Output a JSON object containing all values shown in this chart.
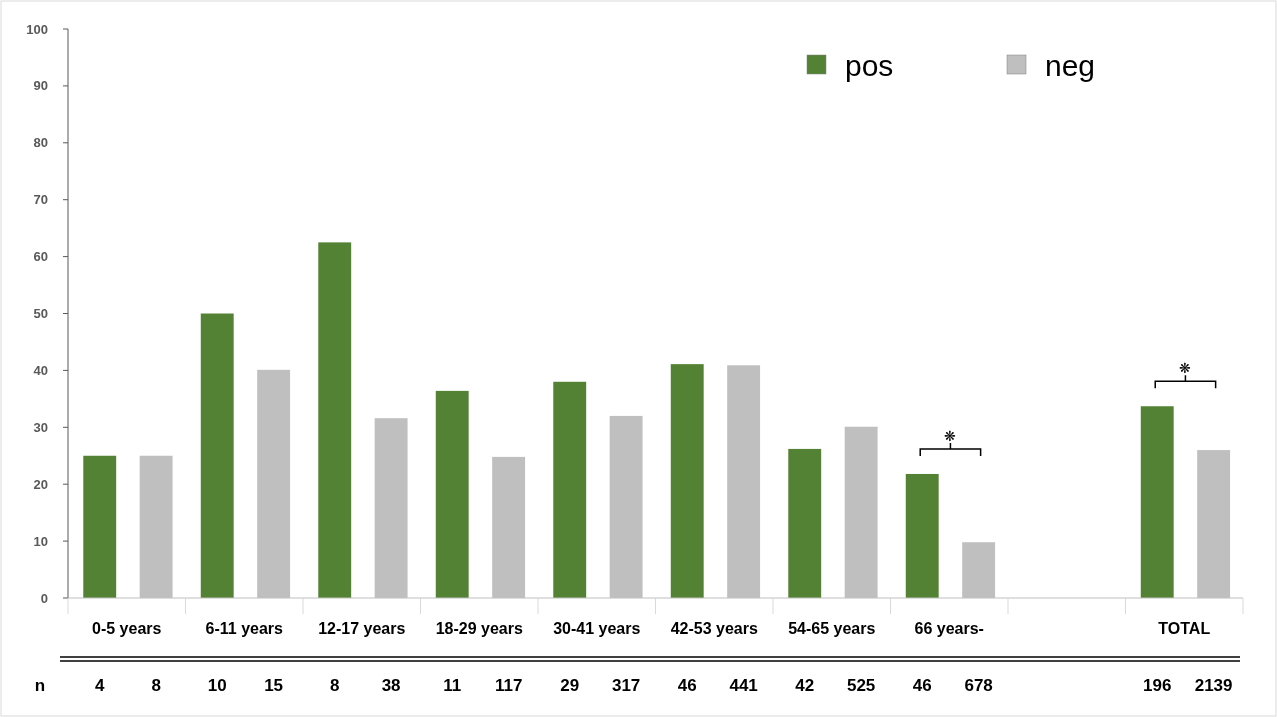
{
  "chart_data": {
    "type": "bar",
    "categories": [
      "0-5 years",
      "6-11 years",
      "12-17 years",
      "18-29 years",
      "30-41 years",
      "42-53 years",
      "54-65 years",
      "66 years-",
      null,
      "TOTAL"
    ],
    "series": [
      {
        "name": "pos",
        "color": "#548235",
        "values": [
          25,
          50,
          62.5,
          36.4,
          38,
          41.1,
          26.2,
          21.8,
          null,
          33.7
        ]
      },
      {
        "name": "neg",
        "color": "#bfbfbf",
        "values": [
          25,
          40.1,
          31.6,
          24.8,
          32,
          40.9,
          30.1,
          9.8,
          null,
          26
        ]
      }
    ],
    "ylim": [
      0,
      100
    ],
    "yticks": [
      0,
      10,
      20,
      30,
      40,
      50,
      60,
      70,
      80,
      90,
      100
    ],
    "grid": false,
    "legend": "top right",
    "annotations": [
      "n",
      "4",
      "8",
      "10",
      "15",
      "8",
      "38",
      "11",
      "117",
      "29",
      "317",
      "46",
      "441",
      "42",
      "525",
      "46",
      "678",
      "196",
      "2139",
      "❋",
      "❋"
    ]
  }
}
